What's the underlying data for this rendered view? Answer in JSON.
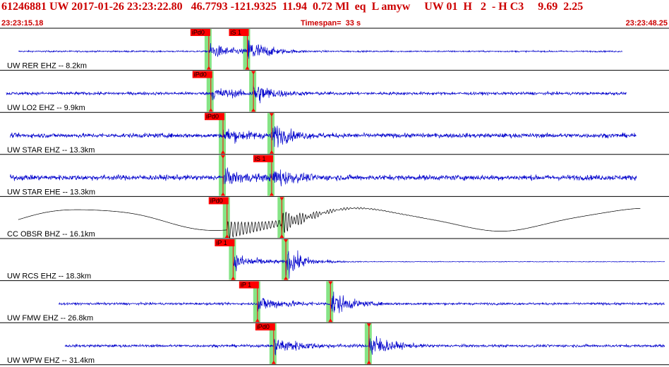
{
  "header": {
    "title": "61246881 UW 2017-01-26 23:23:22.80   46.7793 -121.9325  11.94  0.72 Ml  eq  L amyw     UW 01  H   2  - H C3     9.69  2.25",
    "start_time": "23:23:15.18",
    "timespan_label": "Timespan=  33 s",
    "end_time": "23:23:48.25"
  },
  "colors": {
    "trace_primary": "#0000cc",
    "trace_alt": "#000000",
    "pick_box": "#ff0000",
    "pick_window": "#66dd66",
    "separator": "#000000",
    "header_text": "#cc0000"
  },
  "chart_data": {
    "type": "seismogram",
    "time_range_s": [
      0,
      33
    ],
    "channels": [
      {
        "label": "UW RER EHZ -- 8.2km",
        "trace_color": "blue",
        "trace_start_s": 0.9,
        "trace_end_s": 30.7,
        "amplitude": 0.75,
        "noise": 0.04,
        "picks": [
          {
            "label": "iPd0",
            "time_s": 10.3,
            "type": "P"
          },
          {
            "label": "iS 1",
            "time_s": 12.2,
            "type": "S"
          }
        ]
      },
      {
        "label": "UW LO2 EHZ -- 9.9km",
        "trace_color": "blue",
        "trace_start_s": 0.3,
        "trace_end_s": 30.9,
        "amplitude": 0.6,
        "noise": 0.08,
        "picks": [
          {
            "label": "iPd0",
            "time_s": 10.4,
            "type": "P"
          },
          {
            "label": "",
            "time_s": 12.5,
            "type": "S"
          }
        ]
      },
      {
        "label": "UW STAR EHZ -- 13.3km",
        "trace_color": "blue",
        "trace_start_s": 0.5,
        "trace_end_s": 31.4,
        "amplitude": 0.62,
        "noise": 0.12,
        "picks": [
          {
            "label": "iPd0",
            "time_s": 11.0,
            "type": "P"
          },
          {
            "label": "",
            "time_s": 13.4,
            "type": "S"
          }
        ]
      },
      {
        "label": "UW STAR EHE -- 13.3km",
        "trace_color": "blue",
        "trace_start_s": 0.5,
        "trace_end_s": 31.4,
        "amplitude": 0.6,
        "noise": 0.14,
        "picks": [
          {
            "label": "",
            "time_s": 11.0,
            "type": "P"
          },
          {
            "label": "iS 1",
            "time_s": 13.4,
            "type": "S"
          }
        ]
      },
      {
        "label": "CC OBSR BHZ -- 16.1km",
        "trace_color": "black",
        "trace_start_s": 0.9,
        "trace_end_s": 31.6,
        "amplitude": 0.62,
        "noise": 0.0,
        "picks": [
          {
            "label": "iPd0",
            "time_s": 11.2,
            "type": "P"
          },
          {
            "label": "",
            "time_s": 13.9,
            "type": "S"
          }
        ]
      },
      {
        "label": "UW RCS EHZ -- 18.3km",
        "trace_color": "blue",
        "trace_start_s": 11.5,
        "trace_end_s": 32.8,
        "amplitude": 0.85,
        "noise": 0.02,
        "picks": [
          {
            "label": "iP 1",
            "time_s": 11.5,
            "type": "P"
          },
          {
            "label": "",
            "time_s": 14.1,
            "type": "S"
          }
        ]
      },
      {
        "label": "UW FMW EHZ -- 26.8km",
        "trace_color": "blue",
        "trace_start_s": 2.9,
        "trace_end_s": 32.8,
        "amplitude": 0.78,
        "noise": 0.06,
        "picks": [
          {
            "label": "iP 1",
            "time_s": 12.7,
            "type": "P"
          },
          {
            "label": "",
            "time_s": 16.3,
            "type": "S"
          }
        ]
      },
      {
        "label": "UW WPW EHZ -- 31.4km",
        "trace_color": "blue",
        "trace_start_s": 3.2,
        "trace_end_s": 32.8,
        "amplitude": 0.85,
        "noise": 0.07,
        "picks": [
          {
            "label": "iPd0",
            "time_s": 13.5,
            "type": "P"
          },
          {
            "label": "",
            "time_s": 18.2,
            "type": "S"
          }
        ]
      }
    ]
  }
}
